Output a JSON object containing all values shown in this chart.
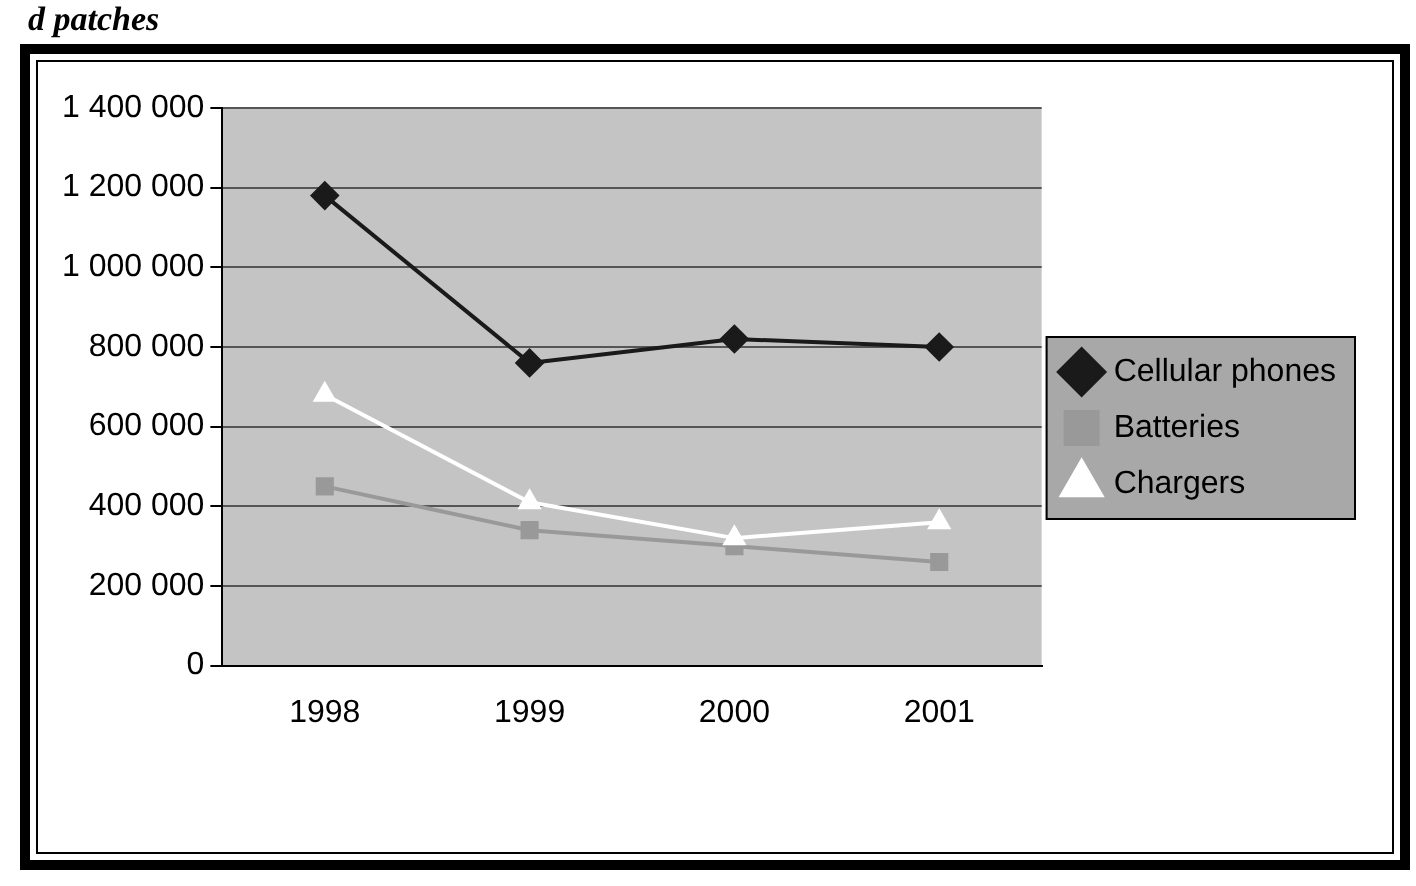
{
  "chart_data": {
    "type": "line",
    "title": "d patches",
    "categories": [
      "1998",
      "1999",
      "2000",
      "2001"
    ],
    "series": [
      {
        "name": "Cellular phones",
        "color": "#1a1a1a",
        "marker": "diamond",
        "values": [
          1180000,
          760000,
          820000,
          800000
        ]
      },
      {
        "name": "Batteries",
        "color": "#999999",
        "marker": "square",
        "values": [
          450000,
          340000,
          300000,
          260000
        ]
      },
      {
        "name": "Chargers",
        "color": "#ffffff",
        "marker": "triangle",
        "values": [
          680000,
          410000,
          320000,
          360000
        ]
      }
    ],
    "ylim": [
      0,
      1400000
    ],
    "yticks": [
      {
        "value": 0,
        "label": "0"
      },
      {
        "value": 200000,
        "label": "200 000"
      },
      {
        "value": 400000,
        "label": "400 000"
      },
      {
        "value": 600000,
        "label": "600 000"
      },
      {
        "value": 800000,
        "label": "800 000"
      },
      {
        "value": 1000000,
        "label": "1 000 000"
      },
      {
        "value": 1200000,
        "label": "1 200 000"
      },
      {
        "value": 1400000,
        "label": "1 400 000"
      }
    ],
    "grid": "y",
    "legend": "right"
  }
}
